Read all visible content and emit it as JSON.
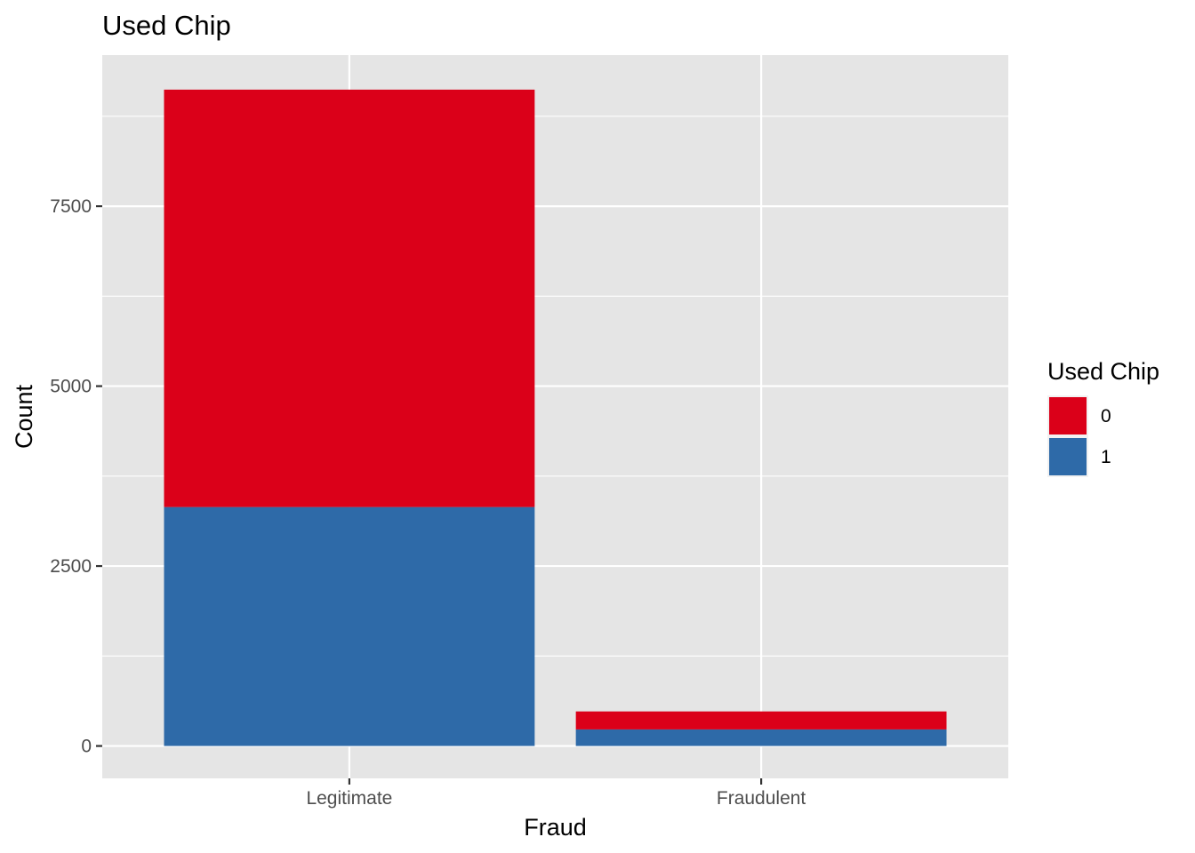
{
  "chart_data": {
    "type": "bar",
    "stacked": true,
    "title": "Used Chip",
    "xlabel": "Fraud",
    "ylabel": "Count",
    "categories": [
      "Legitimate",
      "Fraudulent"
    ],
    "series": [
      {
        "name": "0",
        "color": "#db0019",
        "values": [
          5800,
          250
        ]
      },
      {
        "name": "1",
        "color": "#2e6aa8",
        "values": [
          3320,
          230
        ]
      }
    ],
    "ylim": [
      -450,
      9600
    ],
    "yticks": [
      0,
      2500,
      5000,
      7500
    ],
    "ytick_labels": [
      "0",
      "2500",
      "5000",
      "7500"
    ],
    "grid": true,
    "panel_background": "#e5e5e5",
    "legend": {
      "title": "Used Chip",
      "position": "right"
    }
  }
}
